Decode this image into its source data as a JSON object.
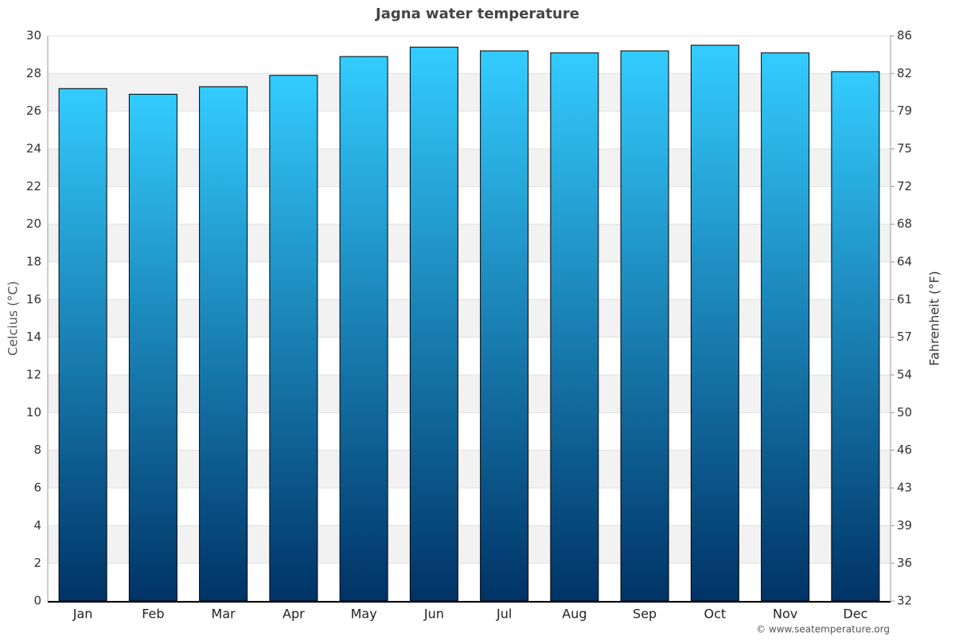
{
  "chart_data": {
    "type": "bar",
    "title": "Jagna water temperature",
    "categories": [
      "Jan",
      "Feb",
      "Mar",
      "Apr",
      "May",
      "Jun",
      "Jul",
      "Aug",
      "Sep",
      "Oct",
      "Nov",
      "Dec"
    ],
    "values": [
      27.2,
      26.9,
      27.3,
      27.9,
      28.9,
      29.4,
      29.2,
      29.1,
      29.2,
      29.5,
      29.1,
      28.1
    ],
    "color": [
      "#33ccff",
      "#003366"
    ],
    "ylabel": "Celcius (°C)",
    "y2label": "Fahrenheit (°F)",
    "ylim": [
      0,
      30
    ],
    "yticks": [
      0,
      2,
      4,
      6,
      8,
      10,
      12,
      14,
      16,
      18,
      20,
      22,
      24,
      26,
      28,
      30
    ],
    "y2lim": [
      32,
      86
    ],
    "y2ticks": [
      32,
      {
        "value": 35.6,
        "label": "36"
      },
      {
        "value": 39.2,
        "label": "39"
      },
      {
        "value": 42.8,
        "label": "43"
      },
      {
        "value": 46.4,
        "label": "46"
      },
      50,
      {
        "value": 53.6,
        "label": "54"
      },
      {
        "value": 57.2,
        "label": "57"
      },
      {
        "value": 60.8,
        "label": "61"
      },
      {
        "value": 64.4,
        "label": "64"
      },
      68,
      {
        "value": 71.6,
        "label": "72"
      },
      {
        "value": 75.2,
        "label": "75"
      },
      {
        "value": 78.8,
        "label": "79"
      },
      {
        "value": 82.4,
        "label": "82"
      },
      86
    ],
    "grid": true,
    "credit": "© www.seatemperature.org"
  }
}
